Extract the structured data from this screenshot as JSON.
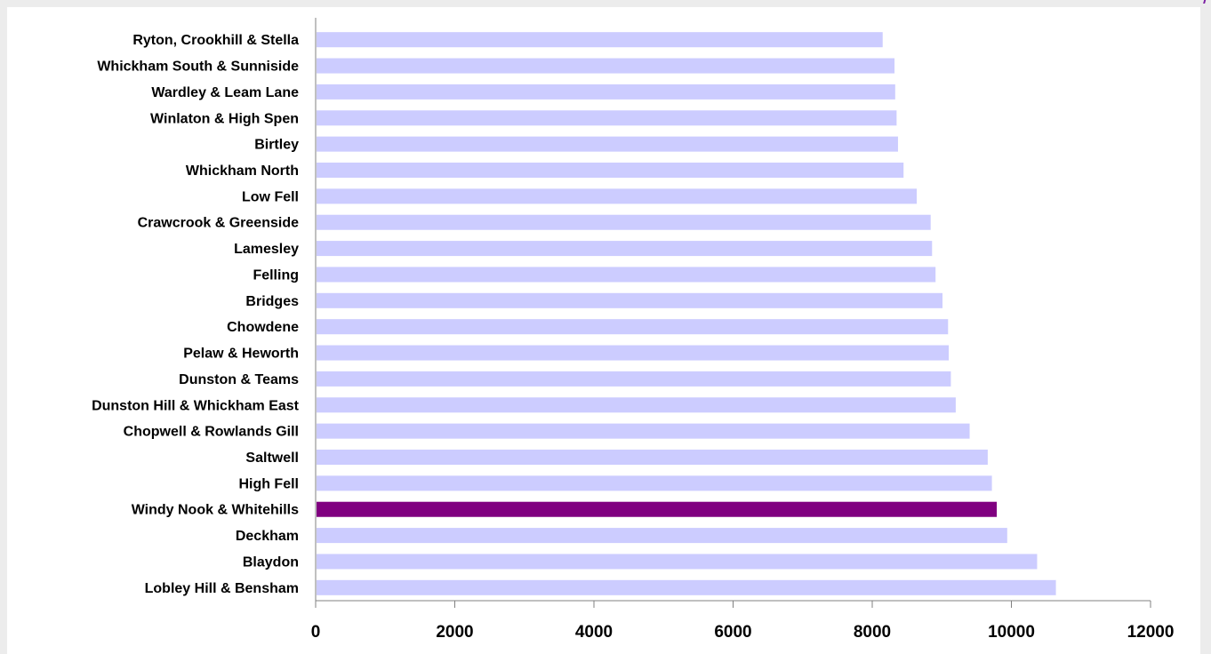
{
  "colors": {
    "bar_default": "#ccccff",
    "bar_highlight": "#800080",
    "axis": "#808080",
    "page_background": "#ececec"
  },
  "chart_data": {
    "type": "bar",
    "orientation": "horizontal",
    "title": "",
    "xlabel": "",
    "ylabel": "",
    "xlim": [
      0,
      12000
    ],
    "x_ticks": [
      0,
      2000,
      4000,
      6000,
      8000,
      10000,
      12000
    ],
    "grid": false,
    "legend": "none",
    "highlight": "Windy Nook & Whitehills",
    "categories": [
      "Ryton, Crookhill & Stella",
      "Whickham South & Sunniside",
      "Wardley & Leam Lane",
      "Winlaton & High Spen",
      "Birtley",
      "Whickham North",
      "Low Fell",
      "Crawcrook & Greenside",
      "Lamesley",
      "Felling",
      "Bridges",
      "Chowdene",
      "Pelaw & Heworth",
      "Dunston & Teams",
      "Dunston Hill & Whickham East",
      "Chopwell & Rowlands Gill",
      "Saltwell",
      "High Fell",
      "Windy Nook & Whitehills",
      "Deckham",
      "Blaydon",
      "Lobley Hill & Bensham"
    ],
    "values": [
      8150,
      8320,
      8330,
      8350,
      8370,
      8450,
      8640,
      8840,
      8860,
      8910,
      9010,
      9090,
      9100,
      9130,
      9200,
      9400,
      9660,
      9720,
      9790,
      9940,
      10370,
      10640
    ]
  }
}
